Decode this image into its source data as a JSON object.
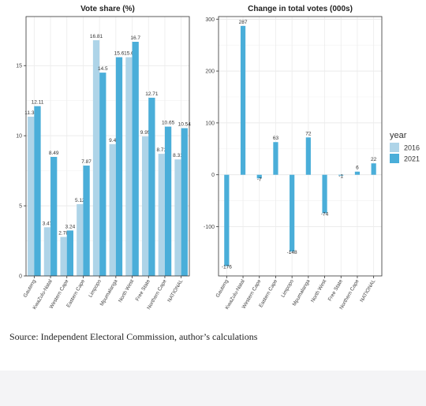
{
  "source_note": "Source: Independent Electoral Commission, author’s calculations",
  "legend": {
    "title": "year",
    "items": [
      {
        "label": "2016",
        "color": "#aed4e8"
      },
      {
        "label": "2021",
        "color": "#4aaed9"
      }
    ]
  },
  "chart_data": [
    {
      "type": "bar",
      "title": "Vote share (%)",
      "xlabel": "",
      "ylabel": "",
      "ylim": [
        0,
        18.5
      ],
      "yticks": [
        0,
        5,
        10,
        15
      ],
      "grid": true,
      "categories": [
        "Gauteng",
        "KwaZulu-Natal",
        "Western Cape",
        "Eastern Cape",
        "Limpopo",
        "Mpumalanga",
        "North West",
        "Free State",
        "Northern Cape",
        "NATIONAL"
      ],
      "series": [
        {
          "name": "2016",
          "values": [
            11.36,
            3.47,
            2.78,
            5.12,
            16.81,
            9.4,
            15.6,
            9.95,
            8.71,
            8.31
          ],
          "labels": [
            "11.36",
            "3.47",
            "2.78",
            "5.12",
            "16.81",
            "9.4",
            "15.6",
            "9.95",
            "8.71",
            "8.31"
          ]
        },
        {
          "name": "2021",
          "values": [
            12.11,
            8.49,
            3.24,
            7.87,
            14.5,
            15.6,
            16.7,
            12.71,
            10.65,
            10.54
          ],
          "labels": [
            "12.11",
            "8.49",
            "3.24",
            "7.87",
            "14.5",
            "15.6",
            "16.7",
            "12.71",
            "10.65",
            "10.54"
          ]
        }
      ]
    },
    {
      "type": "bar",
      "title": "Change in total votes (000s)",
      "xlabel": "",
      "ylabel": "",
      "ylim": [
        -195,
        305
      ],
      "yticks": [
        -100,
        0,
        100,
        200,
        300
      ],
      "ytick_labels": [
        "-100",
        "0",
        "100",
        "200",
        "300"
      ],
      "grid": true,
      "categories": [
        "Gauteng",
        "KwaZulu-Natal",
        "Western Cape",
        "Eastern Cape",
        "Limpopo",
        "Mpumalanga",
        "North West",
        "Free State",
        "Northern Cape",
        "NATIONAL"
      ],
      "series": [
        {
          "name": "2021",
          "values": [
            -176,
            287,
            -7,
            63,
            -148,
            72,
            -74,
            -1,
            6,
            22
          ],
          "labels": [
            "-176",
            "287",
            "-7",
            "63",
            "-148",
            "72",
            "-74",
            "-1",
            "6",
            "22"
          ]
        }
      ]
    }
  ]
}
